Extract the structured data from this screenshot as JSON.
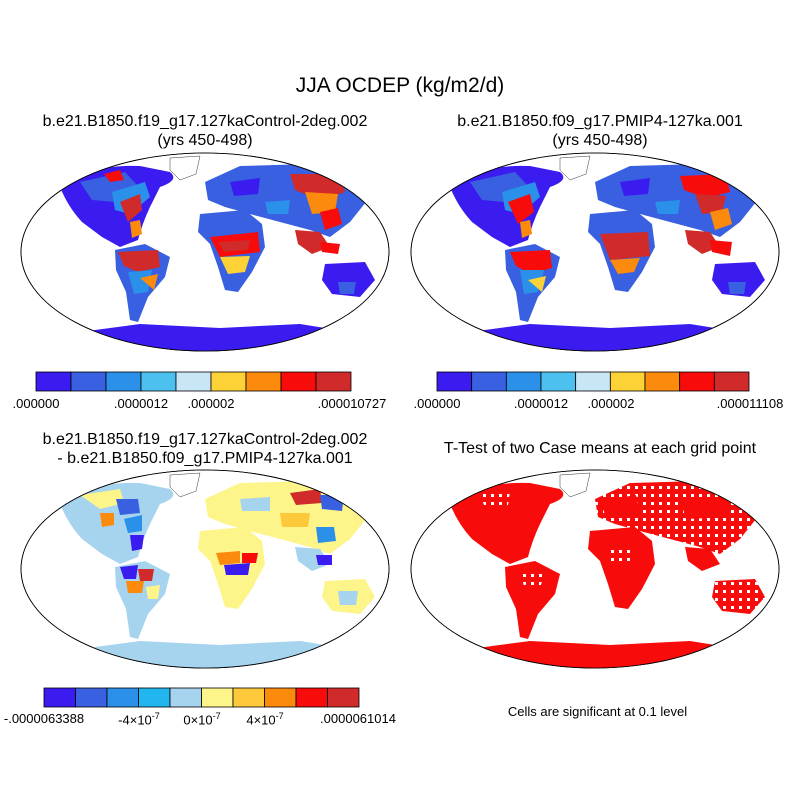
{
  "main_title": "JJA OCDEP (kg/m2/d)",
  "panels": [
    {
      "title_line1": "b.e21.B1850.f19_g17.127kaControl-2deg.002",
      "title_line2": "(yrs 450-498)",
      "colorbar": {
        "colors": [
          "#3b1cf0",
          "#3860e0",
          "#2a90ea",
          "#4cc0ee",
          "#c9e6f7",
          "#fdd236",
          "#fc8a0d",
          "#f70b0b",
          "#d02a2a"
        ],
        "labels": [
          ".000000",
          ".0000012",
          ".000002",
          ".000010727"
        ]
      }
    },
    {
      "title_line1": "b.e21.B1850.f09_g17.PMIP4-127ka.001",
      "title_line2": "(yrs 450-498)",
      "colorbar": {
        "colors": [
          "#3b1cf0",
          "#3860e0",
          "#2a90ea",
          "#4cc0ee",
          "#c9e6f7",
          "#fdd236",
          "#fc8a0d",
          "#f70b0b",
          "#d02a2a"
        ],
        "labels": [
          ".000000",
          ".0000012",
          ".000002",
          ".000011108"
        ]
      }
    },
    {
      "title_line1": "b.e21.B1850.f19_g17.127kaControl-2deg.002",
      "title_line2": "- b.e21.B1850.f09_g17.PMIP4-127ka.001",
      "colorbar": {
        "colors": [
          "#3b1cf0",
          "#3860e0",
          "#2a90ea",
          "#22b6ee",
          "#a6d3ee",
          "#fef58a",
          "#fdc83a",
          "#fc8a0d",
          "#f70b0b",
          "#d02a2a"
        ],
        "labels": [
          "-.0000063388",
          "-4×10",
          "0×10",
          "4×10",
          ".0000061014"
        ],
        "exponent": "-7"
      }
    },
    {
      "title_line1": "T-Test of two Case means at each grid point",
      "footnote": "Cells are significant at 0.1 level"
    }
  ]
}
